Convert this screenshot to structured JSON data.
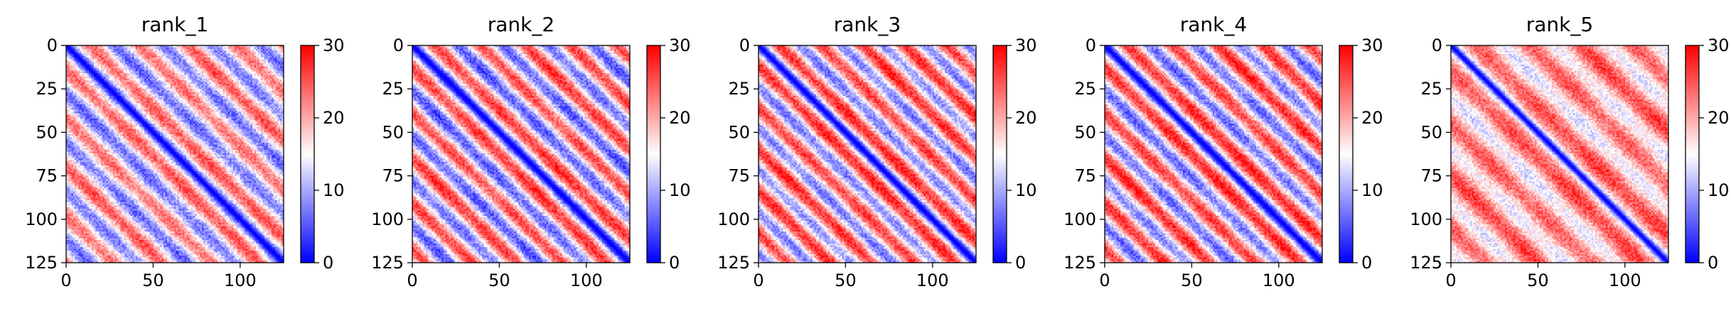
{
  "figure": {
    "colormap": "bwr",
    "colormap_colors": [
      "#0000ff",
      "#ffffff",
      "#ff0000"
    ],
    "background": "#ffffff"
  },
  "chart_data": [
    {
      "type": "heatmap",
      "title": "rank_1",
      "matrix_size": 125,
      "xlim": [
        0,
        125
      ],
      "ylim": [
        125,
        0
      ],
      "xticks": [
        0,
        50,
        100
      ],
      "yticks": [
        0,
        25,
        50,
        75,
        100,
        125
      ],
      "colorbar": {
        "range": [
          0,
          30
        ],
        "ticks": [
          0,
          10,
          20,
          30
        ]
      },
      "diagonal_value": 0,
      "band_period": 28,
      "band_low": 7,
      "band_high": 24
    },
    {
      "type": "heatmap",
      "title": "rank_2",
      "matrix_size": 125,
      "xlim": [
        0,
        125
      ],
      "ylim": [
        125,
        0
      ],
      "xticks": [
        0,
        50,
        100
      ],
      "yticks": [
        0,
        25,
        50,
        75,
        100,
        125
      ],
      "colorbar": {
        "range": [
          0,
          30
        ],
        "ticks": [
          0,
          10,
          20,
          30
        ]
      },
      "diagonal_value": 0,
      "band_period": 26,
      "band_low": 6,
      "band_high": 26
    },
    {
      "type": "heatmap",
      "title": "rank_3",
      "matrix_size": 125,
      "xlim": [
        0,
        125
      ],
      "ylim": [
        125,
        0
      ],
      "xticks": [
        0,
        50,
        100
      ],
      "yticks": [
        0,
        25,
        50,
        75,
        100,
        125
      ],
      "colorbar": {
        "range": [
          0,
          30
        ],
        "ticks": [
          0,
          10,
          20,
          30
        ]
      },
      "diagonal_value": 0,
      "band_period": 24,
      "band_low": 8,
      "band_high": 27
    },
    {
      "type": "heatmap",
      "title": "rank_4",
      "matrix_size": 125,
      "xlim": [
        0,
        125
      ],
      "ylim": [
        125,
        0
      ],
      "xticks": [
        0,
        50,
        100
      ],
      "yticks": [
        0,
        25,
        50,
        75,
        100,
        125
      ],
      "colorbar": {
        "range": [
          0,
          30
        ],
        "ticks": [
          0,
          10,
          20,
          30
        ]
      },
      "diagonal_value": 0,
      "band_period": 26,
      "band_low": 7,
      "band_high": 27
    },
    {
      "type": "heatmap",
      "title": "rank_5",
      "matrix_size": 125,
      "xlim": [
        0,
        125
      ],
      "ylim": [
        125,
        0
      ],
      "xticks": [
        0,
        50,
        100
      ],
      "yticks": [
        0,
        25,
        50,
        75,
        100,
        125
      ],
      "colorbar": {
        "range": [
          0,
          30
        ],
        "ticks": [
          0,
          10,
          20,
          30
        ]
      },
      "diagonal_value": 0,
      "band_period": 30,
      "band_low": 14,
      "band_high": 25
    }
  ]
}
